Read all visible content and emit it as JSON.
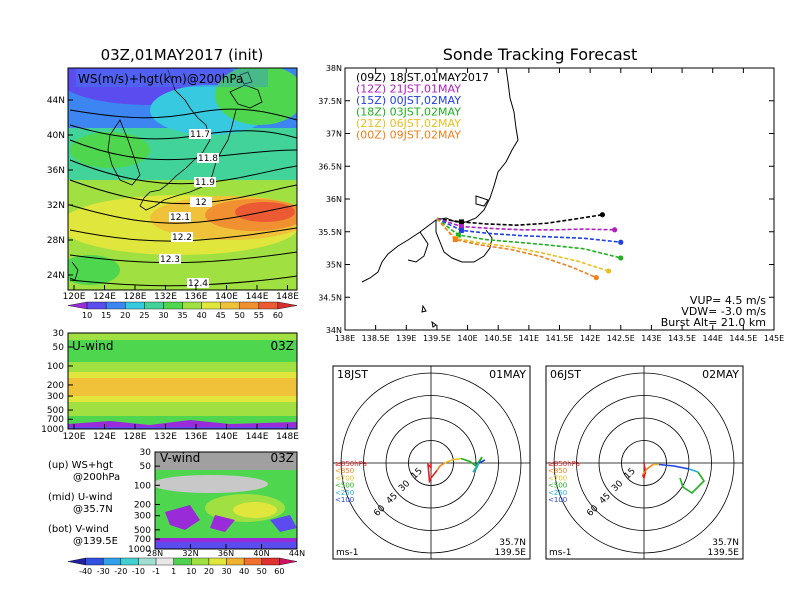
{
  "title_left": "03Z,01MAY2017 (init)",
  "title_right": "Sonde Tracking Forecast",
  "map_panel": {
    "label": "WS(m/s)+hgt(km)@200hPa",
    "x_ticks": [
      "120E",
      "124E",
      "128E",
      "132E",
      "136E",
      "140E",
      "144E",
      "148E"
    ],
    "y_ticks": [
      "44N",
      "40N",
      "36N",
      "32N",
      "28N",
      "24N"
    ],
    "contour_labels": [
      "11.7",
      "11.8",
      "11.9",
      "12",
      "12.1",
      "12.2",
      "12.3",
      "12.4"
    ],
    "colorbar_ticks": [
      "10",
      "15",
      "20",
      "25",
      "30",
      "35",
      "40",
      "45",
      "50",
      "55",
      "60"
    ],
    "colors": [
      "#9a2bd8",
      "#5b4cf0",
      "#3d86f2",
      "#36c9e0",
      "#41d39a",
      "#4fd64f",
      "#a0e040",
      "#e0e63c",
      "#f0c23a",
      "#f09030",
      "#ec5a34",
      "#d83030"
    ]
  },
  "uwind_panel": {
    "label": "U-wind",
    "time": "03Z",
    "y_ticks": [
      "30",
      "50",
      "100",
      "200",
      "300",
      "500",
      "700",
      "1000"
    ],
    "x_ticks": [
      "120E",
      "124E",
      "128E",
      "132E",
      "136E",
      "140E",
      "144E",
      "148E"
    ]
  },
  "vwind_panel": {
    "label": "V-wind",
    "time": "03Z",
    "y_ticks": [
      "30",
      "50",
      "100",
      "200",
      "300",
      "500",
      "700",
      "1000"
    ],
    "x_ticks": [
      "28N",
      "32N",
      "36N",
      "40N",
      "44N"
    ]
  },
  "legend_text": {
    "up1": "(up) WS+hgt",
    "up2": "@200hPa",
    "mid1": "(mid) U-wind",
    "mid2": "@35.7N",
    "bot1": "(bot) V-wind",
    "bot2": "@139.5E"
  },
  "bottom_colorbar_ticks": [
    "-40",
    "-30",
    "-20",
    "-10",
    "-1",
    "1",
    "10",
    "20",
    "30",
    "40",
    "50",
    "60"
  ],
  "chart_data": {
    "type": "line",
    "title": "Sonde Tracking Forecast",
    "xlim": [
      138,
      145
    ],
    "ylim": [
      34,
      38
    ],
    "x_ticks": [
      "138E",
      "138.5E",
      "139E",
      "139.5E",
      "140E",
      "140.5E",
      "141E",
      "141.5E",
      "142E",
      "142.5E",
      "143E",
      "143.5E",
      "144E",
      "144.5E",
      "145E"
    ],
    "y_ticks": [
      "38N",
      "37.5N",
      "37N",
      "36.5N",
      "36N",
      "35.5N",
      "35N",
      "34.5N",
      "34N"
    ],
    "series": [
      {
        "name": "(09Z)  18JST,01MAY2017",
        "color": "#000000",
        "x": [
          139.5,
          139.9,
          140.3,
          140.8,
          141.3,
          141.8,
          142.2
        ],
        "y": [
          35.7,
          35.65,
          35.62,
          35.6,
          35.63,
          35.7,
          35.76
        ]
      },
      {
        "name": "(12Z)  21JST,01MAY",
        "color": "#b020c0",
        "x": [
          139.5,
          139.9,
          140.4,
          140.9,
          141.4,
          141.9,
          142.4
        ],
        "y": [
          35.7,
          35.58,
          35.55,
          35.53,
          35.53,
          35.54,
          35.53
        ]
      },
      {
        "name": "(15Z)  00JST,02MAY",
        "color": "#2040e0",
        "x": [
          139.5,
          139.9,
          140.4,
          140.9,
          141.4,
          141.9,
          142.5
        ],
        "y": [
          35.7,
          35.52,
          35.47,
          35.44,
          35.42,
          35.4,
          35.34
        ]
      },
      {
        "name": "(18Z)  03JST,02MAY",
        "color": "#20b020",
        "x": [
          139.5,
          139.85,
          140.3,
          140.8,
          141.3,
          141.9,
          142.5
        ],
        "y": [
          35.7,
          35.45,
          35.38,
          35.34,
          35.3,
          35.24,
          35.1
        ]
      },
      {
        "name": "(21Z)  06JST,02MAY",
        "color": "#e8c020",
        "x": [
          139.5,
          139.8,
          140.2,
          140.7,
          141.2,
          141.8,
          142.3
        ],
        "y": [
          35.7,
          35.4,
          35.33,
          35.27,
          35.18,
          35.05,
          34.9
        ]
      },
      {
        "name": "(00Z)  09JST,02MAY",
        "color": "#f08020",
        "x": [
          139.5,
          139.8,
          140.2,
          140.7,
          141.2,
          141.7,
          142.1
        ],
        "y": [
          35.7,
          35.38,
          35.3,
          35.23,
          35.12,
          34.96,
          34.8
        ]
      }
    ],
    "annotations": [
      "VUP=  4.5 m/s",
      "VDW= -3.0 m/s",
      "Burst Alt= 21.0 km"
    ]
  },
  "hodograph_left": {
    "time": "18JST",
    "date": "01MAY",
    "ring_labels": [
      "15",
      "30",
      "45",
      "60"
    ],
    "unit": "ms-1",
    "lat": "35.7N",
    "lon": "139.5E",
    "legend": [
      {
        "text": "≥850hPa",
        "color": "#e02020"
      },
      {
        "text": "<850",
        "color": "#f08020"
      },
      {
        "text": "<700",
        "color": "#e8c020"
      },
      {
        "text": "<500",
        "color": "#20b020"
      },
      {
        "text": "<250",
        "color": "#20b0e0"
      },
      {
        "text": "<100",
        "color": "#2040e0"
      }
    ]
  },
  "hodograph_right": {
    "time": "06JST",
    "date": "02MAY",
    "ring_labels": [
      "15",
      "30",
      "45",
      "60"
    ],
    "unit": "ms-1",
    "lat": "35.7N",
    "lon": "139.5E",
    "legend": [
      {
        "text": "≥850hPa",
        "color": "#e02020"
      },
      {
        "text": "<850",
        "color": "#f08020"
      },
      {
        "text": "<700",
        "color": "#e8c020"
      },
      {
        "text": "<500",
        "color": "#20b020"
      },
      {
        "text": "<250",
        "color": "#20b0e0"
      },
      {
        "text": "<100",
        "color": "#2040e0"
      }
    ]
  }
}
